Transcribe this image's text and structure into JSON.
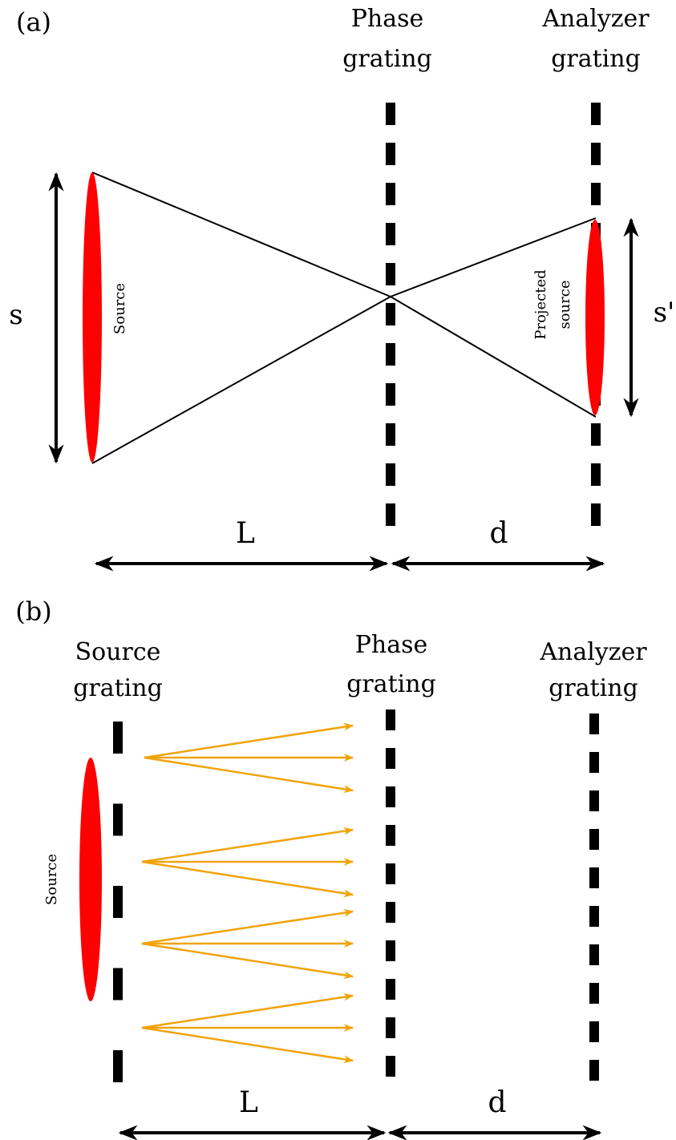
{
  "panel_a": {
    "label": "(a)",
    "phase_grating": [
      "Phase",
      "grating"
    ],
    "analyzer_grating": [
      "Analyzer",
      "grating"
    ],
    "source": "Source",
    "projected_source": [
      "Projected",
      "source"
    ],
    "s": "s",
    "s_prime": "s'",
    "L": "L",
    "d": "d"
  },
  "panel_b": {
    "label": "(b)",
    "source_grating": [
      "Source",
      "grating"
    ],
    "phase_grating": [
      "Phase",
      "grating"
    ],
    "analyzer_grating": [
      "Analyzer",
      "grating"
    ],
    "source": "Source",
    "L": "L",
    "d": "d"
  }
}
